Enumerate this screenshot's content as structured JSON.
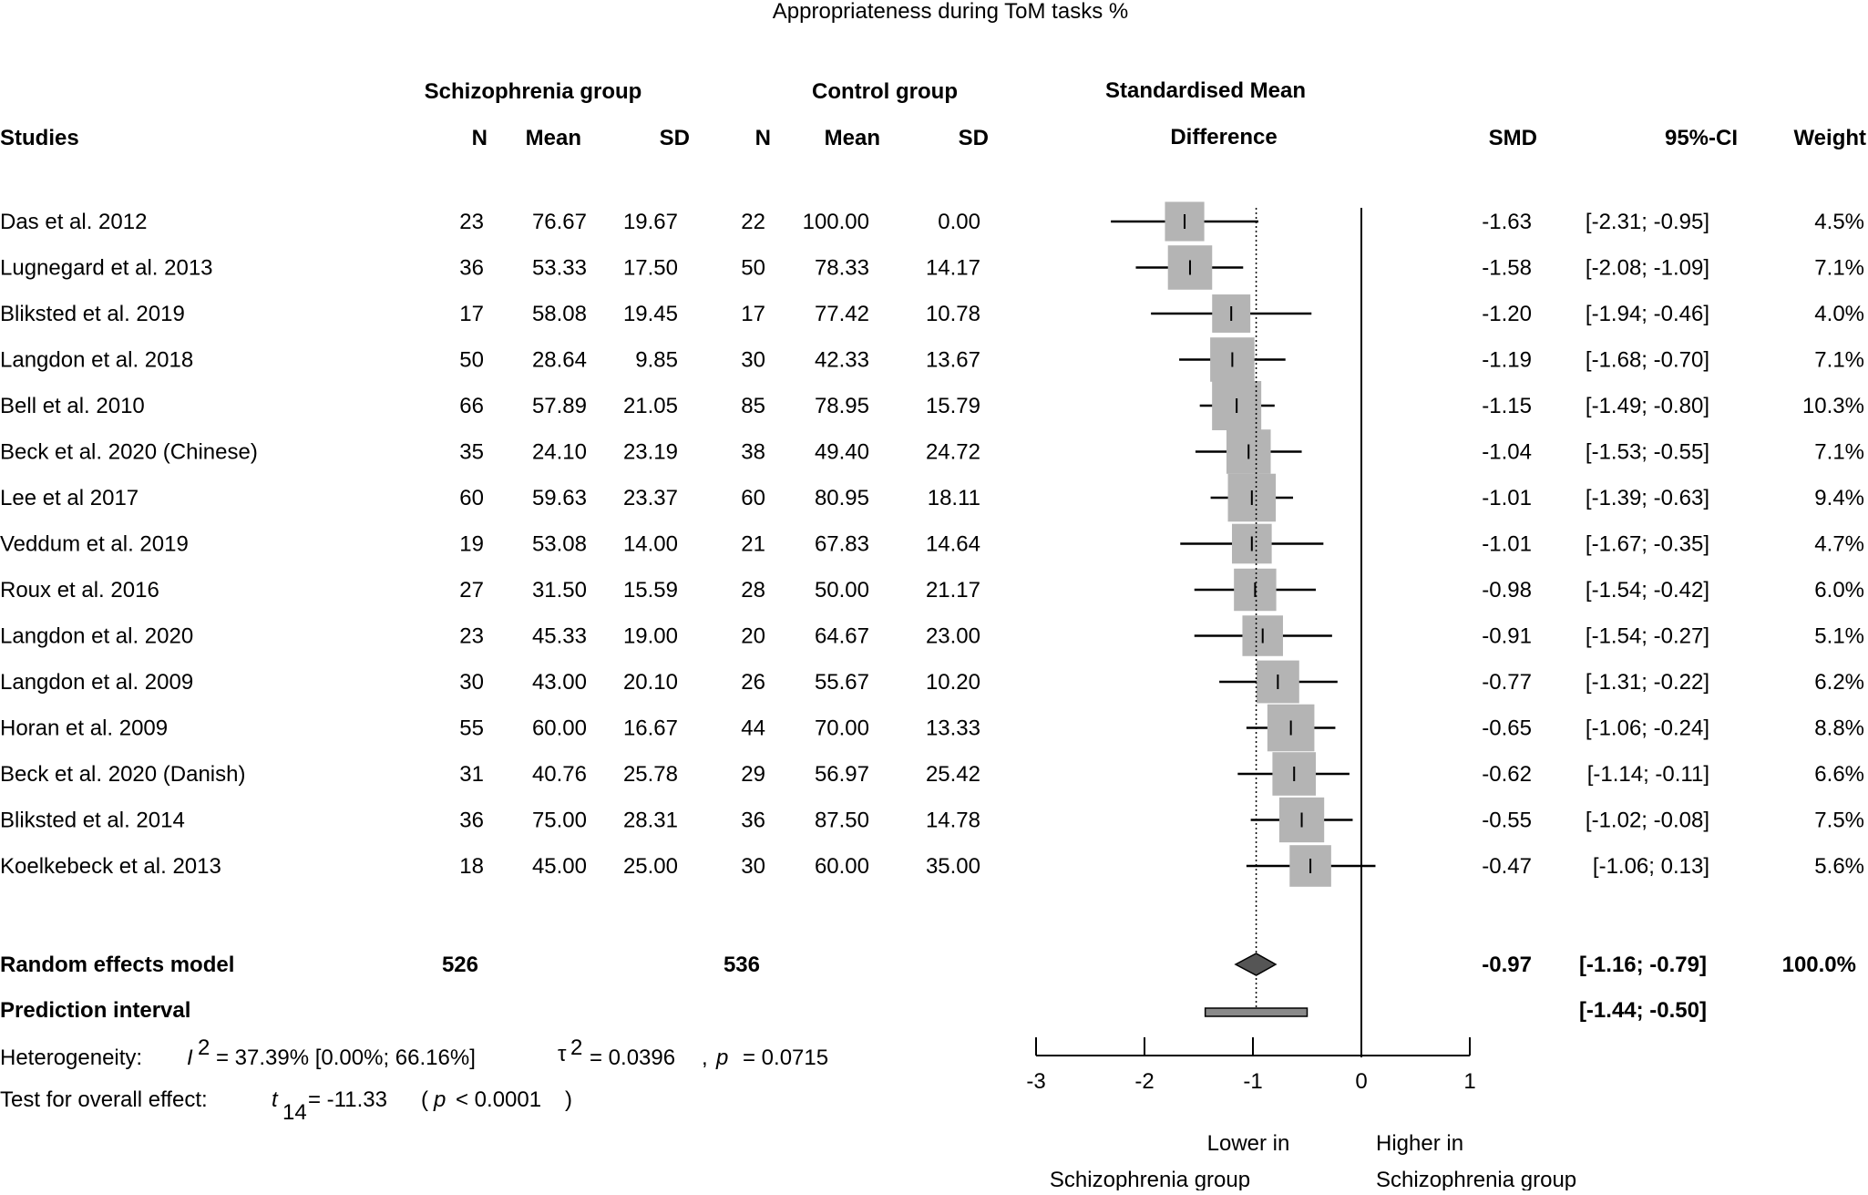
{
  "chart_data": {
    "type": "forest",
    "title": "Appropriateness during ToM tasks %",
    "group_headers": {
      "schizophrenia": "Schizophrenia group",
      "control": "Control group",
      "smd_top": "Standardised Mean",
      "smd_bottom": "Difference"
    },
    "columns": {
      "studies": "Studies",
      "n1": "N",
      "mean1": "Mean",
      "sd1": "SD",
      "n2": "N",
      "mean2": "Mean",
      "sd2": "SD",
      "smd": "SMD",
      "ci": "95%-CI",
      "weight": "Weight"
    },
    "studies": [
      {
        "study": "Das et al. 2012",
        "n1": "23",
        "mean1": "76.67",
        "sd1": "19.67",
        "n2": "22",
        "mean2": "100.00",
        "sd2": "0.00",
        "smd": "-1.63",
        "ci": "[-2.31; -0.95]",
        "weight": "4.5%",
        "est": -1.63,
        "lo": -2.31,
        "hi": -0.95,
        "w": 4.5
      },
      {
        "study": "Lugnegard et al. 2013",
        "n1": "36",
        "mean1": "53.33",
        "sd1": "17.50",
        "n2": "50",
        "mean2": "78.33",
        "sd2": "14.17",
        "smd": "-1.58",
        "ci": "[-2.08; -1.09]",
        "weight": "7.1%",
        "est": -1.58,
        "lo": -2.08,
        "hi": -1.09,
        "w": 7.1
      },
      {
        "study": "Bliksted et al. 2019",
        "n1": "17",
        "mean1": "58.08",
        "sd1": "19.45",
        "n2": "17",
        "mean2": "77.42",
        "sd2": "10.78",
        "smd": "-1.20",
        "ci": "[-1.94; -0.46]",
        "weight": "4.0%",
        "est": -1.2,
        "lo": -1.94,
        "hi": -0.46,
        "w": 4.0
      },
      {
        "study": "Langdon et al. 2018",
        "n1": "50",
        "mean1": "28.64",
        "sd1": "9.85",
        "n2": "30",
        "mean2": "42.33",
        "sd2": "13.67",
        "smd": "-1.19",
        "ci": "[-1.68; -0.70]",
        "weight": "7.1%",
        "est": -1.19,
        "lo": -1.68,
        "hi": -0.7,
        "w": 7.1
      },
      {
        "study": "Bell et al. 2010",
        "n1": "66",
        "mean1": "57.89",
        "sd1": "21.05",
        "n2": "85",
        "mean2": "78.95",
        "sd2": "15.79",
        "smd": "-1.15",
        "ci": "[-1.49; -0.80]",
        "weight": "10.3%",
        "est": -1.15,
        "lo": -1.49,
        "hi": -0.8,
        "w": 10.3
      },
      {
        "study": "Beck et al. 2020 (Chinese)",
        "n1": "35",
        "mean1": "24.10",
        "sd1": "23.19",
        "n2": "38",
        "mean2": "49.40",
        "sd2": "24.72",
        "smd": "-1.04",
        "ci": "[-1.53; -0.55]",
        "weight": "7.1%",
        "est": -1.04,
        "lo": -1.53,
        "hi": -0.55,
        "w": 7.1
      },
      {
        "study": "Lee et al 2017",
        "n1": "60",
        "mean1": "59.63",
        "sd1": "23.37",
        "n2": "60",
        "mean2": "80.95",
        "sd2": "18.11",
        "smd": "-1.01",
        "ci": "[-1.39; -0.63]",
        "weight": "9.4%",
        "est": -1.01,
        "lo": -1.39,
        "hi": -0.63,
        "w": 9.4
      },
      {
        "study": "Veddum et al. 2019",
        "n1": "19",
        "mean1": "53.08",
        "sd1": "14.00",
        "n2": "21",
        "mean2": "67.83",
        "sd2": "14.64",
        "smd": "-1.01",
        "ci": "[-1.67; -0.35]",
        "weight": "4.7%",
        "est": -1.01,
        "lo": -1.67,
        "hi": -0.35,
        "w": 4.7
      },
      {
        "study": "Roux et al. 2016",
        "n1": "27",
        "mean1": "31.50",
        "sd1": "15.59",
        "n2": "28",
        "mean2": "50.00",
        "sd2": "21.17",
        "smd": "-0.98",
        "ci": "[-1.54; -0.42]",
        "weight": "6.0%",
        "est": -0.98,
        "lo": -1.54,
        "hi": -0.42,
        "w": 6.0
      },
      {
        "study": "Langdon et al. 2020",
        "n1": "23",
        "mean1": "45.33",
        "sd1": "19.00",
        "n2": "20",
        "mean2": "64.67",
        "sd2": "23.00",
        "smd": "-0.91",
        "ci": "[-1.54; -0.27]",
        "weight": "5.1%",
        "est": -0.91,
        "lo": -1.54,
        "hi": -0.27,
        "w": 5.1
      },
      {
        "study": "Langdon et al. 2009",
        "n1": "30",
        "mean1": "43.00",
        "sd1": "20.10",
        "n2": "26",
        "mean2": "55.67",
        "sd2": "10.20",
        "smd": "-0.77",
        "ci": "[-1.31; -0.22]",
        "weight": "6.2%",
        "est": -0.77,
        "lo": -1.31,
        "hi": -0.22,
        "w": 6.2
      },
      {
        "study": "Horan et al. 2009",
        "n1": "55",
        "mean1": "60.00",
        "sd1": "16.67",
        "n2": "44",
        "mean2": "70.00",
        "sd2": "13.33",
        "smd": "-0.65",
        "ci": "[-1.06; -0.24]",
        "weight": "8.8%",
        "est": -0.65,
        "lo": -1.06,
        "hi": -0.24,
        "w": 8.8
      },
      {
        "study": "Beck et al. 2020 (Danish)",
        "n1": "31",
        "mean1": "40.76",
        "sd1": "25.78",
        "n2": "29",
        "mean2": "56.97",
        "sd2": "25.42",
        "smd": "-0.62",
        "ci": "[-1.14; -0.11]",
        "weight": "6.6%",
        "est": -0.62,
        "lo": -1.14,
        "hi": -0.11,
        "w": 6.6
      },
      {
        "study": "Bliksted et al. 2014",
        "n1": "36",
        "mean1": "75.00",
        "sd1": "28.31",
        "n2": "36",
        "mean2": "87.50",
        "sd2": "14.78",
        "smd": "-0.55",
        "ci": "[-1.02; -0.08]",
        "weight": "7.5%",
        "est": -0.55,
        "lo": -1.02,
        "hi": -0.08,
        "w": 7.5
      },
      {
        "study": "Koelkebeck et al. 2013",
        "n1": "18",
        "mean1": "45.00",
        "sd1": "25.00",
        "n2": "30",
        "mean2": "60.00",
        "sd2": "35.00",
        "smd": "-0.47",
        "ci": "[-1.06;  0.13]",
        "weight": "5.6%",
        "est": -0.47,
        "lo": -1.06,
        "hi": 0.13,
        "w": 5.6
      }
    ],
    "random_effects": {
      "label": "Random effects model",
      "n1": "526",
      "n2": "536",
      "smd": "-0.97",
      "ci": "[-1.16; -0.79]",
      "weight": "100.0%",
      "est": -0.97,
      "lo": -1.16,
      "hi": -0.79
    },
    "prediction_interval": {
      "label": "Prediction interval",
      "ci": "[-1.44; -0.50]",
      "lo": -1.44,
      "hi": -0.5
    },
    "heterogeneity": {
      "label": "Heterogeneity:",
      "i2_symbol": "I",
      "i2_sup": "2",
      "i2_value": "= 37.39% [0.00%; 66.16%]",
      "tau_symbol": "τ",
      "tau_sup": "2",
      "tau_value": "= 0.0396",
      "p_sep": ",",
      "p_symbol": "p",
      "p_value": "= 0.0715"
    },
    "overall_test": {
      "label": "Test for overall effect:",
      "t_symbol": "t",
      "t_sub": "14",
      "t_value": "=  -11.33",
      "p_open": "(",
      "p_symbol": "p",
      "p_value": "< 0.0001",
      "p_close": ")"
    },
    "x_axis": {
      "ticks": [
        -3,
        -2,
        -1,
        0,
        1
      ],
      "tick_labels": [
        "-3",
        "-2",
        "-1",
        "0",
        "1"
      ],
      "xlim": [
        -3,
        1
      ],
      "left_label_1": "Lower in",
      "left_label_2": "Schizophrenia group",
      "right_label_1": "Higher in",
      "right_label_2": "Schizophrenia group"
    },
    "colors": {
      "box": "#b4b4b4",
      "diamond": "#555555",
      "pi_bar": "#8a8a8a"
    }
  }
}
